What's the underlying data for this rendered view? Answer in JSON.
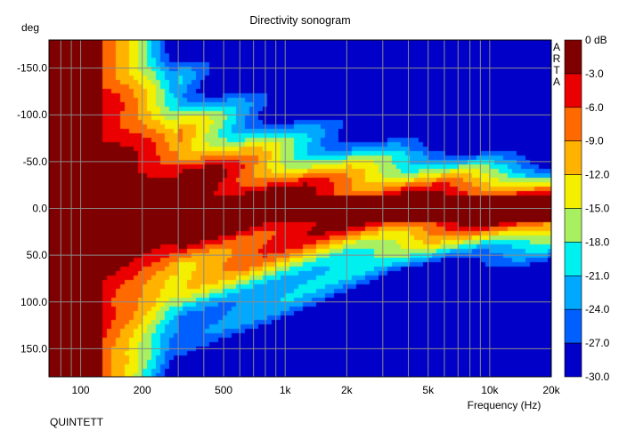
{
  "chart_data": {
    "type": "heatmap",
    "title": "Directivity sonogram",
    "xlabel": "Frequency (Hz)",
    "ylabel": "deg",
    "x_scale": "log",
    "xlim": [
      70,
      20000
    ],
    "ylim": [
      -180,
      180
    ],
    "x_ticks": [
      {
        "value": 100,
        "label": "100"
      },
      {
        "value": 200,
        "label": "200"
      },
      {
        "value": 500,
        "label": "500"
      },
      {
        "value": 1000,
        "label": "1k"
      },
      {
        "value": 2000,
        "label": "2k"
      },
      {
        "value": 5000,
        "label": "5k"
      },
      {
        "value": 10000,
        "label": "10k"
      },
      {
        "value": 20000,
        "label": "20k"
      }
    ],
    "x_gridlines": [
      80,
      90,
      100,
      200,
      300,
      400,
      500,
      600,
      700,
      800,
      900,
      1000,
      2000,
      3000,
      4000,
      5000,
      6000,
      7000,
      8000,
      9000,
      10000,
      20000
    ],
    "y_ticks": [
      {
        "value": -150,
        "label": "-150.0"
      },
      {
        "value": -100,
        "label": "-100.0"
      },
      {
        "value": -50,
        "label": "-50.0"
      },
      {
        "value": 0,
        "label": "0.0"
      },
      {
        "value": 50,
        "label": "50.0"
      },
      {
        "value": 100,
        "label": "100.0"
      },
      {
        "value": 150,
        "label": "150.0"
      }
    ],
    "grid": true,
    "colorbar": {
      "label_text": "ARTA",
      "levels": [
        {
          "label": "0 dB",
          "color": "#7f0000"
        },
        {
          "label": "-3.0",
          "color": "#ea0000"
        },
        {
          "label": "-6.0",
          "color": "#ff6a00"
        },
        {
          "label": "-9.0",
          "color": "#ffb300"
        },
        {
          "label": "-12.0",
          "color": "#f4ee00"
        },
        {
          "label": "-15.0",
          "color": "#a8f060"
        },
        {
          "label": "-18.0",
          "color": "#00f0f0"
        },
        {
          "label": "-21.0",
          "color": "#00a8ff"
        },
        {
          "label": "-24.0",
          "color": "#0060ff"
        },
        {
          "label": "-27.0",
          "color": "#0000c8"
        },
        {
          "label": "-30.0",
          "color": ""
        }
      ]
    }
  },
  "footer_label": "QUINTETT"
}
